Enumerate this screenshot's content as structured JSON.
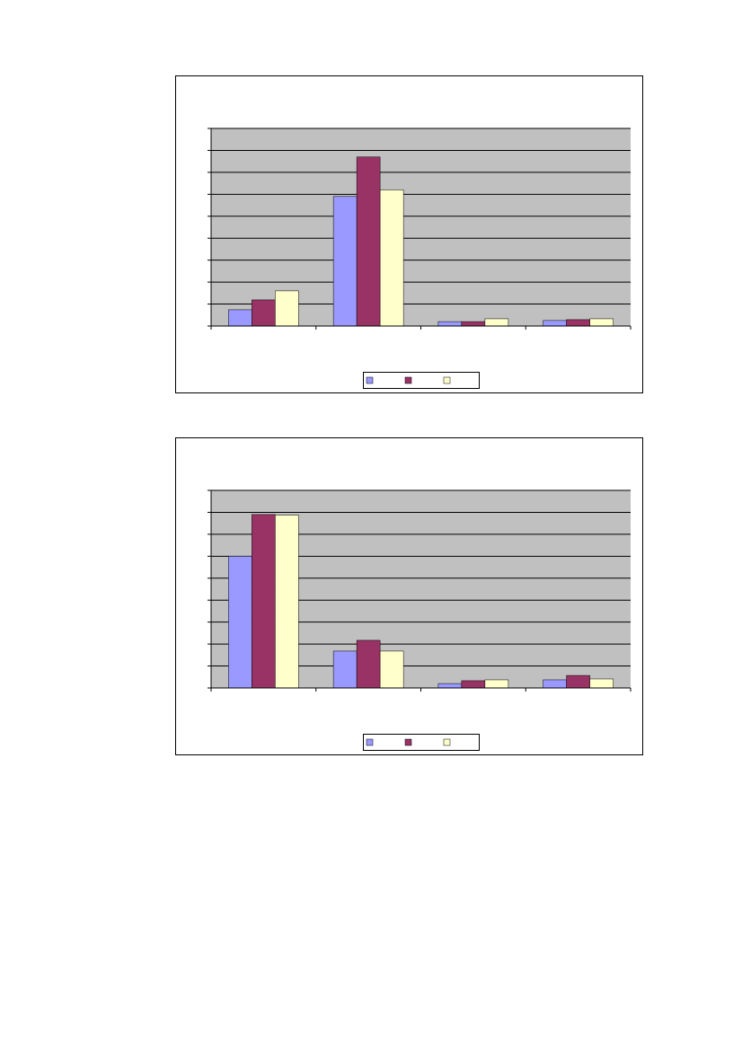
{
  "chart_data": [
    {
      "type": "bar",
      "categories": [
        null,
        null,
        null,
        null
      ],
      "series": [
        {
          "color": "#9999ff",
          "values": [
            0.74,
            5.9,
            0.2,
            0.25
          ]
        },
        {
          "color": "#993366",
          "values": [
            1.19,
            7.7,
            0.2,
            0.29
          ]
        },
        {
          "color": "#ffffcc",
          "values": [
            1.6,
            6.2,
            0.33,
            0.33
          ]
        }
      ],
      "ylim": [
        0,
        9
      ],
      "yticks": [
        0,
        1,
        2,
        3,
        4,
        5,
        6,
        7,
        8,
        9
      ],
      "grid": true,
      "legend": "bottom"
    },
    {
      "type": "bar",
      "categories": [
        null,
        null,
        null,
        null
      ],
      "series": [
        {
          "color": "#9999ff",
          "values": [
            6.0,
            1.68,
            0.2,
            0.37
          ]
        },
        {
          "color": "#993366",
          "values": [
            7.9,
            2.17,
            0.33,
            0.57
          ]
        },
        {
          "color": "#ffffcc",
          "values": [
            7.87,
            1.68,
            0.37,
            0.41
          ]
        }
      ],
      "ylim": [
        0,
        9
      ],
      "yticks": [
        0,
        1,
        2,
        3,
        4,
        5,
        6,
        7,
        8,
        9
      ],
      "grid": true,
      "legend": "bottom"
    }
  ]
}
